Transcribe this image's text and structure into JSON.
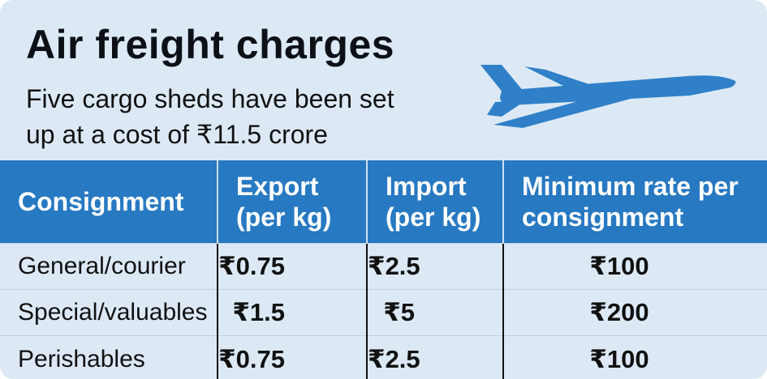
{
  "title": "Air freight charges",
  "subtitle": "Five cargo sheds have been set up at a cost of ₹11.5 crore",
  "colors": {
    "background": "#dce9f5",
    "header": "#2779c2",
    "plane": "#2f80c8"
  },
  "icon": "airplane-icon",
  "table": {
    "headers": [
      "Consignment",
      "Export (per kg)",
      "Import (per kg)",
      "Minimum rate per consignment"
    ],
    "rows": [
      {
        "consignment": "General/courier",
        "export": "₹0.75",
        "import": "₹2.5",
        "minimum": "₹100"
      },
      {
        "consignment": "Special/valuables",
        "export": "₹1.5",
        "import": "₹5",
        "minimum": "₹200"
      },
      {
        "consignment": "Perishables",
        "export": "₹0.75",
        "import": "₹2.5",
        "minimum": "₹100"
      }
    ]
  }
}
